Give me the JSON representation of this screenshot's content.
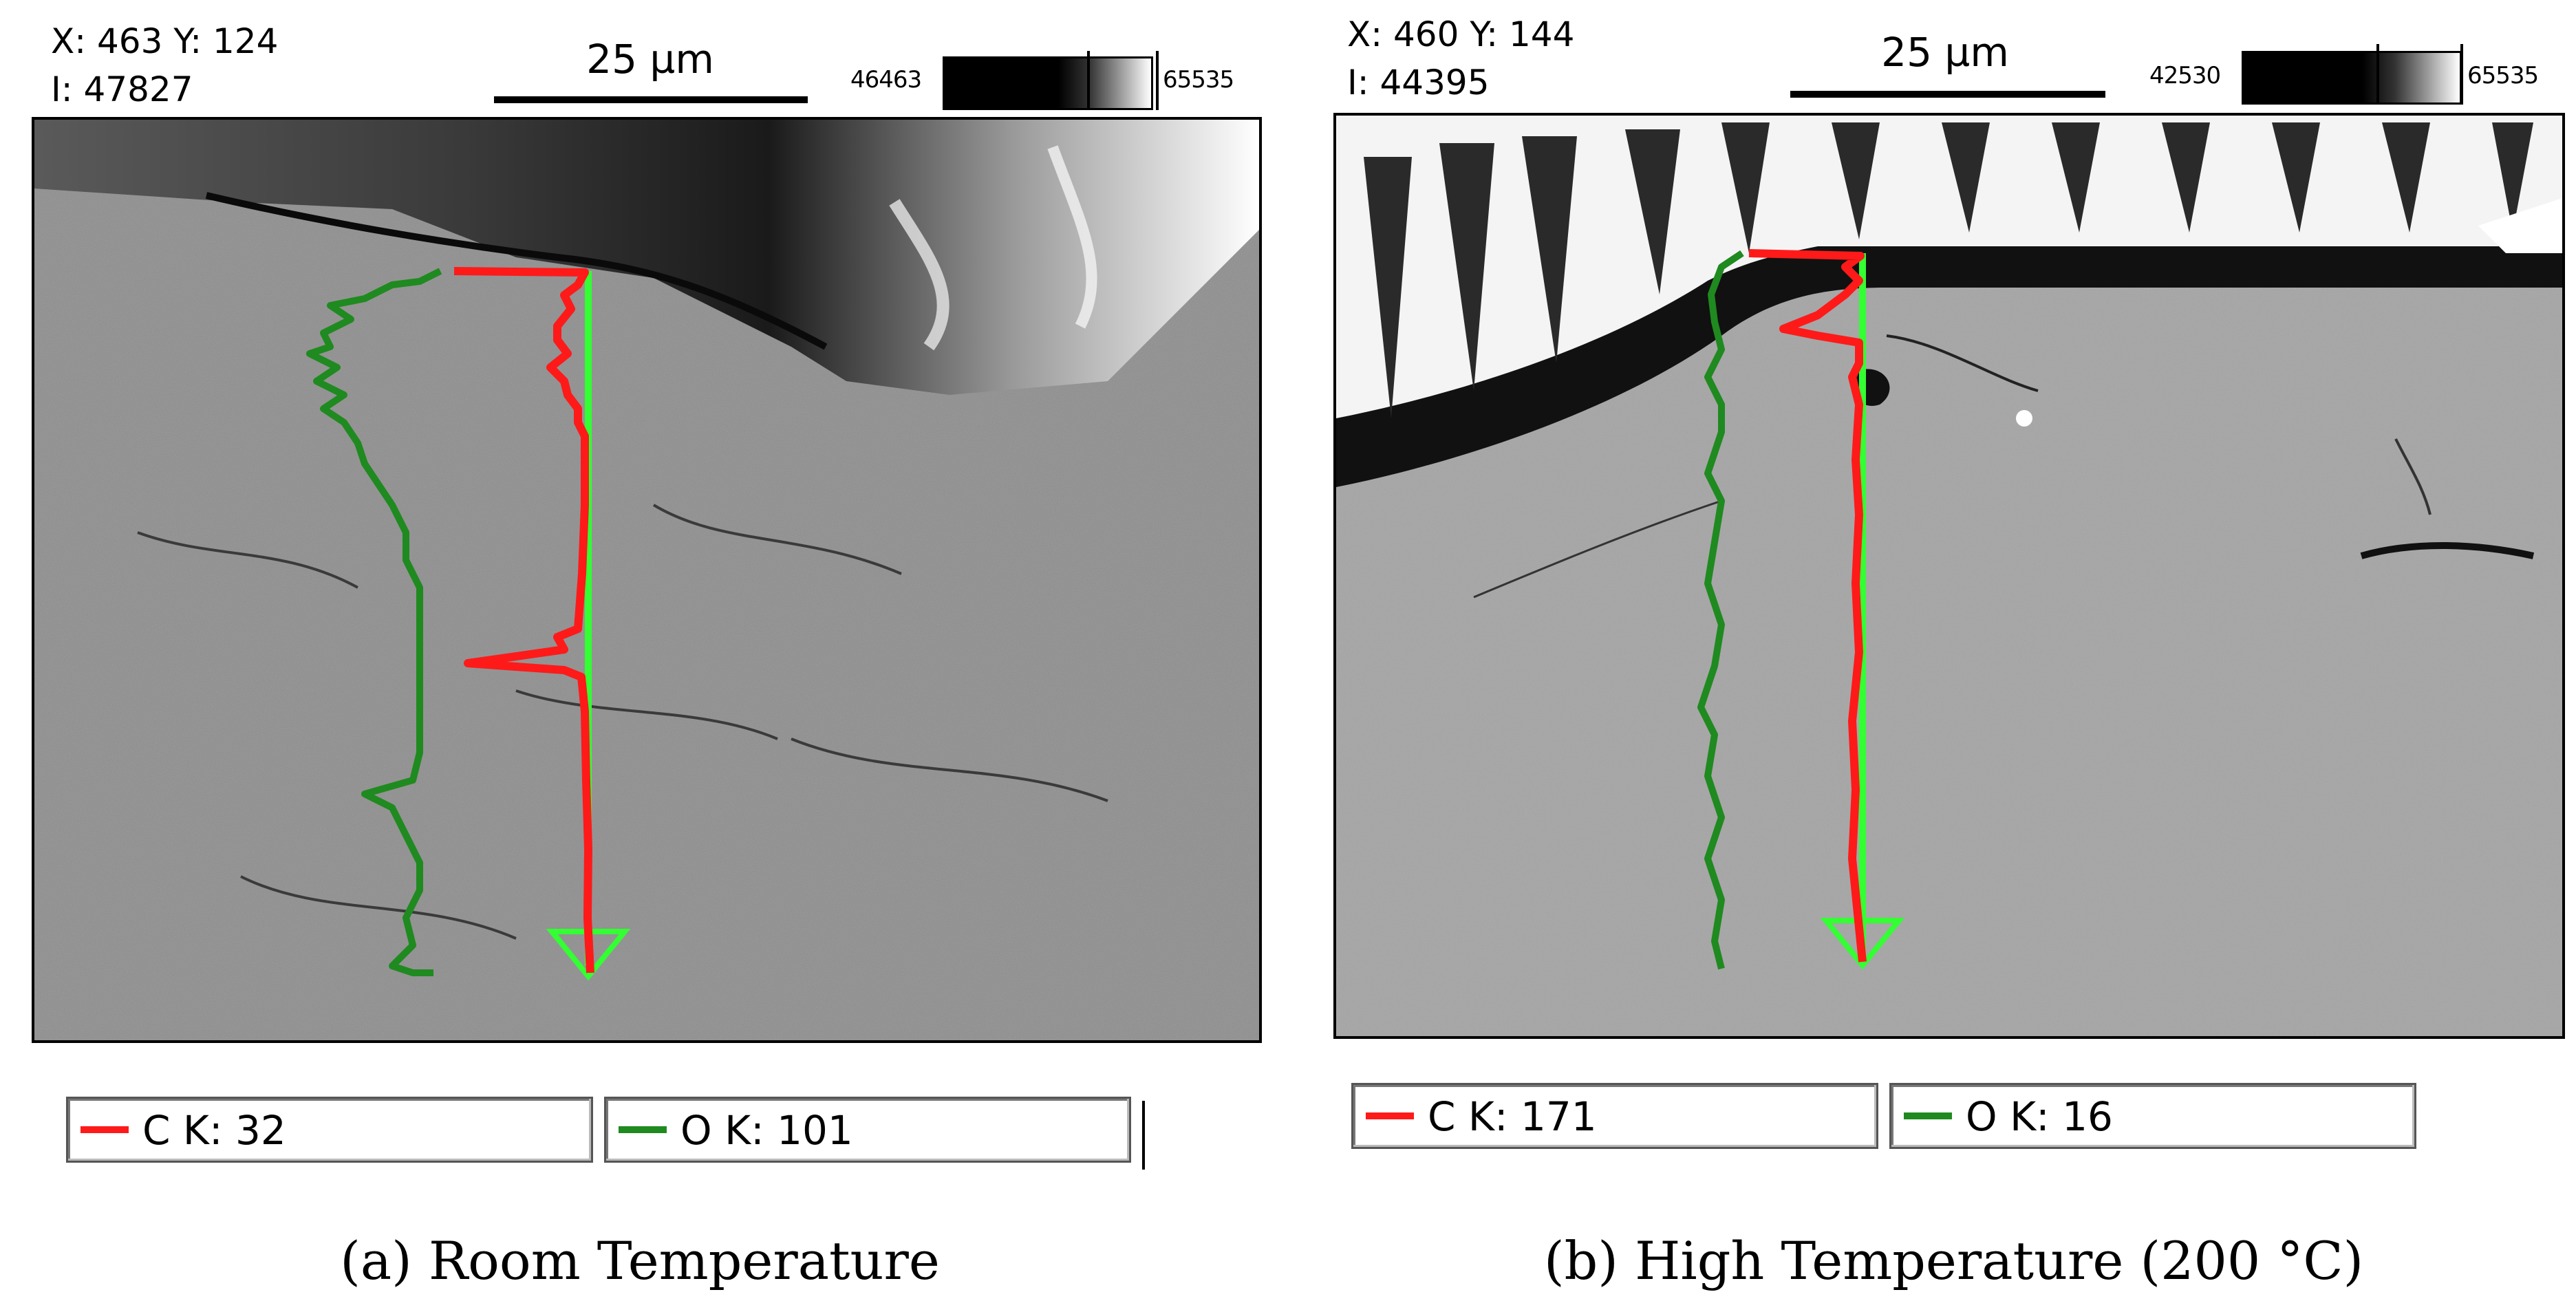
{
  "panels": [
    {
      "id": "a",
      "cursor": {
        "xy_label": "X: 463 Y: 124",
        "intensity_label": "I: 47827"
      },
      "scale_bar_label": "25 µm",
      "gray_min": "46463",
      "gray_max": "65535",
      "legend": [
        {
          "label": "C K: 32",
          "color": "#ff1a1a"
        },
        {
          "label": "O K: 101",
          "color": "#1f8a1f"
        }
      ],
      "caption": "(a) Room Temperature"
    },
    {
      "id": "b",
      "cursor": {
        "xy_label": "X: 460 Y: 144",
        "intensity_label": "I: 44395"
      },
      "scale_bar_label": "25 µm",
      "gray_min": "42530",
      "gray_max": "65535",
      "legend": [
        {
          "label": "C K: 171",
          "color": "#ff1a1a"
        },
        {
          "label": "O K: 16",
          "color": "#1f8a1f"
        }
      ],
      "caption": "(b) High Temperature (200 °C)"
    }
  ],
  "colors": {
    "carbon_line": "#ff1a1a",
    "oxygen_line": "#1a9a1a",
    "scan_arrow": "#33ff33"
  }
}
